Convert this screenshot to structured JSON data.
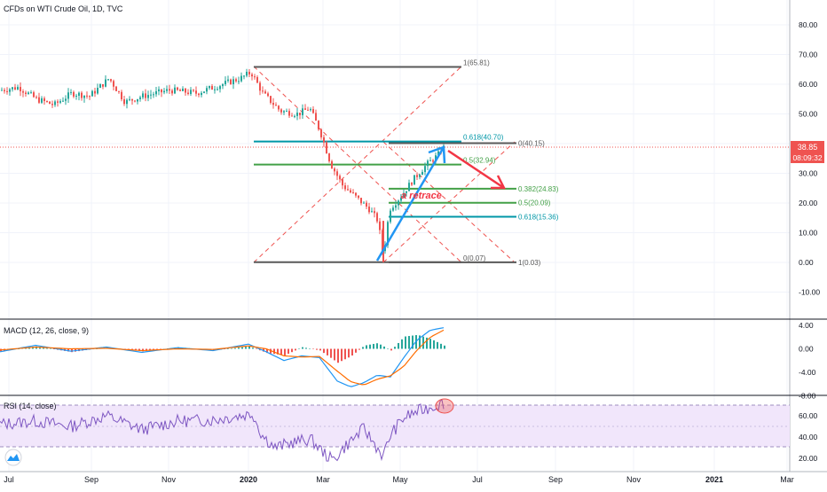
{
  "header": {
    "symbol_title": "CFDs on WTI Crude Oil, 1D, TVC"
  },
  "price_panel": {
    "y_ticks": [
      "80.00",
      "70.00",
      "60.00",
      "50.00",
      "40.00",
      "30.00",
      "20.00",
      "10.00",
      "0.00",
      "-10.00"
    ],
    "last_price_label": "38.85",
    "countdown_label": "08:09:32",
    "last_price": 38.85
  },
  "fib_upper": [
    {
      "label": "1(65.81)",
      "price": 65.81
    },
    {
      "label": "0.618(40.70)",
      "price": 40.7
    },
    {
      "label": "0.5(32.94)",
      "price": 32.94
    },
    {
      "label": "0(0.07)",
      "price": 0.07
    }
  ],
  "fib_lower": [
    {
      "label": "0(40.15)",
      "price": 40.15
    },
    {
      "label": "0.382(24.83)",
      "price": 24.83
    },
    {
      "label": "0.5(20.09)",
      "price": 20.09
    },
    {
      "label": "0.618(15.36)",
      "price": 15.36
    },
    {
      "label": "1(0.03)",
      "price": 0.03
    }
  ],
  "annotation": {
    "text": "a retrace"
  },
  "macd_panel": {
    "title": "MACD (12, 26, close, 9)",
    "y_ticks": [
      "4.00",
      "0.00",
      "-4.00",
      "-8.00"
    ]
  },
  "rsi_panel": {
    "title": "RSI (14, close)",
    "y_ticks": [
      "60.00",
      "40.00",
      "20.00"
    ]
  },
  "time_axis": {
    "labels": [
      "Jul",
      "Sep",
      "Nov",
      "2020",
      "Mar",
      "May",
      "Jul",
      "Sep",
      "Nov",
      "2021",
      "Mar"
    ]
  },
  "colors": {
    "up": "#26a69a",
    "down": "#ef5350",
    "fib_gray": "#595959",
    "fib_teal": "#0097a7",
    "fib_green": "#43a047",
    "arrow_blue": "#2196f3",
    "arrow_red": "#f23645",
    "rsi_line": "#7e57c2",
    "rsi_band": "#f1e6fb",
    "macd_line": "#2196f3",
    "signal_line": "#ff6d00"
  },
  "chart_data": {
    "type": "candlestick",
    "title": "CFDs on WTI Crude Oil, 1D, TVC",
    "ylim": [
      -15,
      88
    ],
    "x_ticks": [
      "Jul",
      "Sep",
      "Nov",
      "2020",
      "Mar",
      "May",
      "Jul",
      "Sep",
      "Nov",
      "2021",
      "Mar"
    ],
    "series": [
      {
        "name": "price",
        "x": [
          "2019-07",
          "2019-09",
          "2019-11",
          "2020-01",
          "2020-02",
          "2020-03",
          "2020-04-01",
          "2020-04-20",
          "2020-05",
          "2020-06-05"
        ],
        "values": [
          58,
          56,
          57,
          62,
          50,
          24,
          20,
          0.07,
          25,
          39
        ]
      }
    ],
    "fibonacci_upper": [
      {
        "level": "1",
        "value": 65.81
      },
      {
        "level": "0.618",
        "value": 40.7
      },
      {
        "level": "0.5",
        "value": 32.94
      },
      {
        "level": "0",
        "value": 0.07
      }
    ],
    "fibonacci_lower": [
      {
        "level": "0",
        "value": 40.15
      },
      {
        "level": "0.382",
        "value": 24.83
      },
      {
        "level": "0.5",
        "value": 20.09
      },
      {
        "level": "0.618",
        "value": 15.36
      },
      {
        "level": "1",
        "value": 0.03
      }
    ],
    "last_value": 38.85,
    "macd_ylim": [
      -8,
      4
    ],
    "rsi_ylim": [
      10,
      80
    ],
    "rsi_bands": [
      30,
      70
    ]
  }
}
